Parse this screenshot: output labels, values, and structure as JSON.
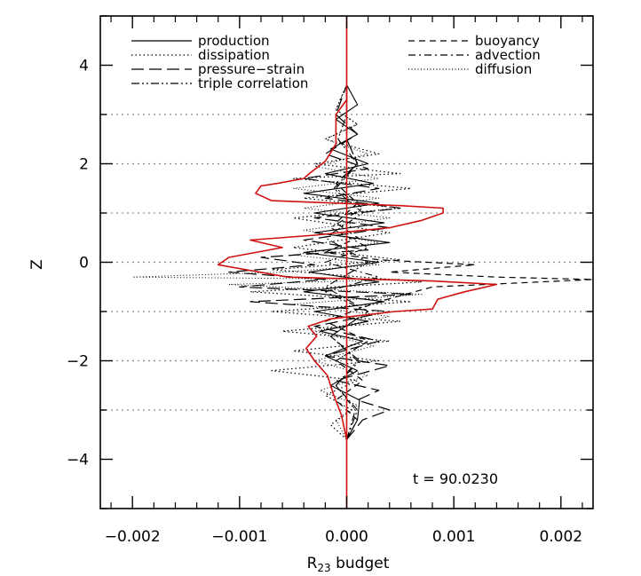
{
  "chart_data": {
    "type": "line",
    "xlabel": "R",
    "xlabel_sub": "23",
    "xlabel_rest": " budget",
    "ylabel": "Z",
    "xlim": [
      -0.0023,
      0.0023
    ],
    "ylim": [
      -5,
      5
    ],
    "xticks": [
      -0.002,
      -0.001,
      0.0,
      0.001,
      0.002
    ],
    "xtick_labels": [
      "−0.002",
      "−0.001",
      "0.000",
      "0.001",
      "0.002"
    ],
    "yticks": [
      -4,
      -2,
      0,
      2,
      4
    ],
    "ytick_labels": [
      "−4",
      "−2",
      "0",
      "2",
      "4"
    ],
    "reference_lines_z": [
      -3,
      -1,
      1,
      3
    ],
    "reference_lines_z_minor": [
      -2,
      0,
      2
    ],
    "annotation": "t  =  90.0230",
    "legend_left": [
      {
        "name": "production",
        "style": "solid"
      },
      {
        "name": "dissipation",
        "style": "dotted"
      },
      {
        "name": "pressure−strain",
        "style": "longdash"
      },
      {
        "name": "triple correlation",
        "style": "dashdotdot"
      }
    ],
    "legend_right": [
      {
        "name": "buoyancy",
        "style": "dashed"
      },
      {
        "name": "advection",
        "style": "dashdot"
      },
      {
        "name": "diffusion",
        "style": "finedot"
      }
    ],
    "series": [
      {
        "key": "sum",
        "color": "#d01010",
        "style": "solid",
        "width": 1.6,
        "points": [
          [
            0,
            -3.6
          ],
          [
            -5e-05,
            -3.1
          ],
          [
            -0.00012,
            -2.7
          ],
          [
            -0.00018,
            -2.3
          ],
          [
            -0.0003,
            -2.0
          ],
          [
            -0.00038,
            -1.75
          ],
          [
            -0.00028,
            -1.5
          ],
          [
            -0.00036,
            -1.3
          ],
          [
            -0.00015,
            -1.15
          ],
          [
            0.00045,
            -1.0
          ],
          [
            0.0008,
            -0.95
          ],
          [
            0.00085,
            -0.75
          ],
          [
            0.0011,
            -0.6
          ],
          [
            0.0014,
            -0.45
          ],
          [
            0.0008,
            -0.38
          ],
          [
            -0.00055,
            -0.3
          ],
          [
            -0.0012,
            -0.05
          ],
          [
            -0.0011,
            0.1
          ],
          [
            -0.0006,
            0.3
          ],
          [
            -0.0009,
            0.45
          ],
          [
            -0.0003,
            0.55
          ],
          [
            0.0004,
            0.7
          ],
          [
            0.0007,
            0.85
          ],
          [
            0.0009,
            1.0
          ],
          [
            0.0009,
            1.1
          ],
          [
            0.0005,
            1.15
          ],
          [
            -0.0007,
            1.25
          ],
          [
            -0.00085,
            1.4
          ],
          [
            -0.0008,
            1.55
          ],
          [
            -0.00065,
            1.6
          ],
          [
            -0.0004,
            1.7
          ],
          [
            -0.00035,
            1.8
          ],
          [
            -0.0002,
            2.05
          ],
          [
            -0.0001,
            2.4
          ],
          [
            -0.0001,
            2.75
          ],
          [
            -0.0001,
            3.0
          ],
          [
            0.0,
            3.3
          ],
          [
            0.0,
            3.6
          ]
        ]
      },
      {
        "key": "production",
        "color": "#000000",
        "style": "solid",
        "width": 1.1,
        "points": [
          [
            0,
            -3.6
          ],
          [
            0.0001,
            -3.2
          ],
          [
            0.00012,
            -2.8
          ],
          [
            -0.00015,
            -2.5
          ],
          [
            0.0001,
            -2.2
          ],
          [
            -0.0002,
            -1.9
          ],
          [
            0.00015,
            -1.6
          ],
          [
            -0.00025,
            -1.4
          ],
          [
            0.0002,
            -1.2
          ],
          [
            -0.0003,
            -1.0
          ],
          [
            0.00035,
            -0.8
          ],
          [
            -0.0004,
            -0.6
          ],
          [
            0.0003,
            -0.4
          ],
          [
            -0.00035,
            -0.2
          ],
          [
            0.0003,
            0.0
          ],
          [
            -0.0004,
            0.2
          ],
          [
            0.0004,
            0.4
          ],
          [
            -0.0003,
            0.6
          ],
          [
            0.00035,
            0.8
          ],
          [
            -0.0003,
            1.0
          ],
          [
            0.0003,
            1.2
          ],
          [
            -0.0004,
            1.4
          ],
          [
            0.00025,
            1.6
          ],
          [
            -0.0002,
            1.8
          ],
          [
            0.0002,
            2.0
          ],
          [
            -0.00015,
            2.3
          ],
          [
            0.0001,
            2.6
          ],
          [
            -0.0001,
            2.9
          ],
          [
            0.0001,
            3.2
          ],
          [
            0,
            3.6
          ]
        ]
      },
      {
        "key": "dissipation",
        "color": "#000000",
        "style": "dotted",
        "width": 1.2,
        "points": [
          [
            0,
            -3.6
          ],
          [
            -0.00015,
            -3.3
          ],
          [
            5e-05,
            -3.0
          ],
          [
            -0.0002,
            -2.7
          ],
          [
            0.0001,
            -2.4
          ],
          [
            -0.0007,
            -2.2
          ],
          [
            0.0003,
            -2.0
          ],
          [
            -0.0005,
            -1.8
          ],
          [
            0.0004,
            -1.6
          ],
          [
            -0.0006,
            -1.4
          ],
          [
            0.0005,
            -1.2
          ],
          [
            -0.0007,
            -1.0
          ],
          [
            0.0006,
            -0.8
          ],
          [
            -0.0009,
            -0.6
          ],
          [
            0.0007,
            -0.4
          ],
          [
            -0.0007,
            -0.15
          ],
          [
            0.0005,
            0.05
          ],
          [
            -0.0005,
            0.3
          ],
          [
            0.0004,
            0.6
          ],
          [
            -0.0005,
            0.9
          ],
          [
            0.0005,
            1.1
          ],
          [
            -0.0004,
            1.3
          ],
          [
            0.0006,
            1.5
          ],
          [
            -0.0005,
            1.7
          ],
          [
            0.0005,
            1.8
          ],
          [
            -0.0003,
            2.0
          ],
          [
            0.0003,
            2.2
          ],
          [
            -0.0002,
            2.5
          ],
          [
            0.0001,
            2.8
          ],
          [
            -0.0001,
            3.1
          ],
          [
            0,
            3.6
          ]
        ]
      },
      {
        "key": "pressure-strain",
        "color": "#000000",
        "style": "longdash",
        "width": 1.2,
        "points": [
          [
            0,
            -3.6
          ],
          [
            0.00015,
            -3.2
          ],
          [
            0.0004,
            -3.0
          ],
          [
            0.0001,
            -2.8
          ],
          [
            0.0003,
            -2.6
          ],
          [
            -0.0001,
            -2.4
          ],
          [
            0.0004,
            -2.1
          ],
          [
            -0.0002,
            -1.9
          ],
          [
            0.0003,
            -1.6
          ],
          [
            -0.0003,
            -1.3
          ],
          [
            0.0004,
            -1.0
          ],
          [
            -0.0009,
            -0.8
          ],
          [
            0.0006,
            -0.65
          ],
          [
            -0.001,
            -0.5
          ],
          [
            -0.0002,
            -0.35
          ],
          [
            -0.0011,
            -0.2
          ],
          [
            -0.0003,
            -0.05
          ],
          [
            -0.0008,
            0.1
          ],
          [
            0.0002,
            0.25
          ],
          [
            -0.0004,
            0.45
          ],
          [
            0.0004,
            0.7
          ],
          [
            -0.0003,
            0.9
          ],
          [
            0.0005,
            1.1
          ],
          [
            -0.0002,
            1.3
          ],
          [
            0.0003,
            1.5
          ],
          [
            -0.0004,
            1.7
          ],
          [
            0.0002,
            1.9
          ],
          [
            -0.0002,
            2.2
          ],
          [
            0.0001,
            2.6
          ],
          [
            -0.0001,
            3.0
          ],
          [
            0,
            3.6
          ]
        ]
      },
      {
        "key": "buoyancy",
        "color": "#000000",
        "style": "dashed",
        "width": 1.2,
        "points": [
          [
            0,
            -3.6
          ],
          [
            0.0001,
            -3.2
          ],
          [
            -0.0001,
            -2.8
          ],
          [
            0.00015,
            -2.4
          ],
          [
            -0.0001,
            -2.0
          ],
          [
            0.0002,
            -1.6
          ],
          [
            -0.0002,
            -1.2
          ],
          [
            0.0003,
            -0.8
          ],
          [
            0.0008,
            -0.5
          ],
          [
            0.0023,
            -0.35
          ],
          [
            0.0014,
            -0.3
          ],
          [
            0.0004,
            -0.2
          ],
          [
            0.0012,
            -0.05
          ],
          [
            0.0003,
            0.05
          ],
          [
            -0.0002,
            0.2
          ],
          [
            0.0001,
            0.5
          ],
          [
            -0.0001,
            0.8
          ],
          [
            0.0001,
            1.2
          ],
          [
            -0.0001,
            1.6
          ],
          [
            0.0001,
            2.0
          ],
          [
            0,
            2.5
          ],
          [
            0,
            3.6
          ]
        ]
      },
      {
        "key": "advection",
        "color": "#000000",
        "style": "dashdot",
        "width": 1.1,
        "points": [
          [
            0,
            -3.6
          ],
          [
            0.0001,
            -3.0
          ],
          [
            -0.0001,
            -2.5
          ],
          [
            0.0001,
            -2.0
          ],
          [
            -0.00015,
            -1.5
          ],
          [
            0.0002,
            -1.0
          ],
          [
            -0.0002,
            -0.6
          ],
          [
            0.0003,
            -0.3
          ],
          [
            -0.0002,
            0.0
          ],
          [
            0.0002,
            0.3
          ],
          [
            -0.00015,
            0.7
          ],
          [
            0.00015,
            1.1
          ],
          [
            -0.0001,
            1.5
          ],
          [
            0.0001,
            2.0
          ],
          [
            0,
            2.5
          ],
          [
            0,
            3.6
          ]
        ]
      },
      {
        "key": "diffusion",
        "color": "#000000",
        "style": "finedot",
        "width": 1.0,
        "points": [
          [
            0,
            -3.6
          ],
          [
            -0.0001,
            -3.2
          ],
          [
            0.0001,
            -2.9
          ],
          [
            -0.00025,
            -2.6
          ],
          [
            0.0002,
            -2.3
          ],
          [
            -0.0003,
            -2.0
          ],
          [
            0.00025,
            -1.7
          ],
          [
            -0.0003,
            -1.4
          ],
          [
            0.0004,
            -1.1
          ],
          [
            -0.0005,
            -0.85
          ],
          [
            0.0007,
            -0.65
          ],
          [
            -0.0011,
            -0.45
          ],
          [
            0.0005,
            -0.35
          ],
          [
            -0.002,
            -0.3
          ],
          [
            -0.0006,
            -0.2
          ],
          [
            0.0003,
            -0.05
          ],
          [
            -0.0005,
            0.15
          ],
          [
            0.0003,
            0.4
          ],
          [
            -0.0004,
            0.65
          ],
          [
            0.0004,
            0.9
          ],
          [
            -0.0004,
            1.1
          ],
          [
            0.0003,
            1.3
          ],
          [
            -0.0005,
            1.5
          ],
          [
            0.0003,
            1.7
          ],
          [
            -0.0003,
            1.95
          ],
          [
            0.0002,
            2.2
          ],
          [
            -0.0002,
            2.5
          ],
          [
            0.0001,
            2.8
          ],
          [
            -0.0001,
            3.1
          ],
          [
            0,
            3.6
          ]
        ]
      },
      {
        "key": "triple correlation",
        "color": "#000000",
        "style": "dashdotdot",
        "width": 1.1,
        "points": [
          [
            0,
            -3.6
          ],
          [
            8e-05,
            -3.0
          ],
          [
            -0.0001,
            -2.5
          ],
          [
            0.00012,
            -2.0
          ],
          [
            -0.00015,
            -1.5
          ],
          [
            0.0002,
            -1.0
          ],
          [
            -0.0002,
            -0.5
          ],
          [
            0.0002,
            0.0
          ],
          [
            -0.0002,
            0.5
          ],
          [
            0.00015,
            1.0
          ],
          [
            -0.00012,
            1.5
          ],
          [
            0.0001,
            2.0
          ],
          [
            -8e-05,
            2.5
          ],
          [
            0,
            3.0
          ],
          [
            0,
            3.6
          ]
        ]
      }
    ]
  }
}
